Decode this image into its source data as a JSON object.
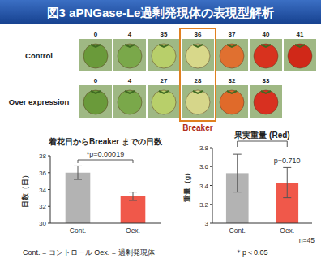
{
  "header": {
    "title": "図3 aPNGase-Le過剰発現体の表現型解析"
  },
  "photos": {
    "rows": [
      {
        "label": "Control",
        "days": [
          0,
          4,
          35,
          36,
          37,
          40,
          41
        ]
      },
      {
        "label": "Over expression",
        "days": [
          0,
          4,
          27,
          28,
          32,
          33
        ]
      }
    ],
    "highlight_label": "Breaker"
  },
  "chart_data": [
    {
      "type": "bar",
      "title": "着花日からBreaker までの日数",
      "y_label": "日数（日）",
      "categories": [
        "Cont.",
        "Oex."
      ],
      "values": [
        36.0,
        33.2
      ],
      "errors": [
        0.8,
        0.5
      ],
      "colors": [
        "#b3b3b3",
        "#f0584a"
      ],
      "ylim": [
        30,
        38
      ],
      "yticks": [
        30,
        32,
        34,
        36,
        38
      ],
      "grid": false,
      "annotation": "*p=0.00019"
    },
    {
      "type": "bar",
      "title": "果実重量 (Red)",
      "y_label": "重量（g）",
      "categories": [
        "Cont.",
        "Oex."
      ],
      "values": [
        3.53,
        3.43
      ],
      "errors": [
        0.2,
        0.16
      ],
      "colors": [
        "#b3b3b3",
        "#f0584a"
      ],
      "ylim": [
        3,
        3.8
      ],
      "yticks": [
        3,
        3.2,
        3.4,
        3.6,
        3.8
      ],
      "grid": false,
      "annotation": "p=0.710"
    }
  ],
  "footer": {
    "legend_note": "Cont. = コントロール  Oex. = 過剰発現体",
    "significance": "＊p＜0.05",
    "n": "n=45"
  }
}
